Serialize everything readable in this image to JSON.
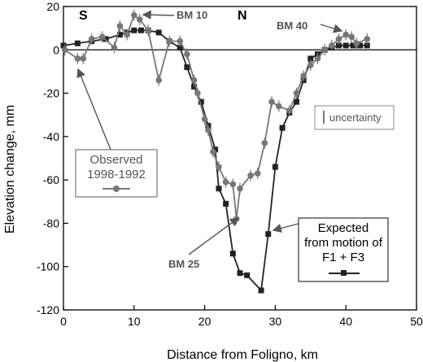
{
  "chart_data": {
    "type": "line",
    "xlabel": "Distance from Foligno, km",
    "ylabel": "Elevation change, mm",
    "xlim": [
      0,
      50
    ],
    "ylim": [
      -120,
      20
    ],
    "xticks": [
      0,
      10,
      20,
      30,
      40,
      50
    ],
    "yticks": [
      20,
      0,
      -20,
      -40,
      -60,
      -80,
      -100,
      -120
    ],
    "grid": false,
    "colors": {
      "observed": "#777777",
      "expected": "#222222",
      "axis": "#000000",
      "arrow": "#555555"
    },
    "series": [
      {
        "name": "Observed 1998-1992",
        "marker": "circle",
        "points": [
          [
            0.2,
            0
          ],
          [
            2,
            -4
          ],
          [
            2.8,
            -4
          ],
          [
            4,
            5
          ],
          [
            5.5,
            6
          ],
          [
            7.2,
            1
          ],
          [
            8,
            11
          ],
          [
            9,
            7
          ],
          [
            10,
            16
          ],
          [
            10.8,
            14
          ],
          [
            12,
            9
          ],
          [
            13.5,
            -14
          ],
          [
            15,
            4
          ],
          [
            16.5,
            4
          ],
          [
            17.5,
            -2
          ],
          [
            18.5,
            -14
          ],
          [
            19,
            -20
          ],
          [
            20,
            -32
          ],
          [
            20.5,
            -37
          ],
          [
            21.2,
            -47
          ],
          [
            22,
            -54
          ],
          [
            23,
            -61
          ],
          [
            24,
            -62
          ],
          [
            24.5,
            -78
          ],
          [
            25,
            -64
          ],
          [
            26.5,
            -58
          ],
          [
            27.5,
            -57
          ],
          [
            28.5,
            -43
          ],
          [
            29.5,
            -24
          ],
          [
            30.5,
            -26
          ],
          [
            32,
            -28
          ],
          [
            33,
            -20
          ],
          [
            34,
            -12
          ],
          [
            35,
            -7
          ],
          [
            36,
            -4
          ],
          [
            37,
            0
          ],
          [
            38,
            2
          ],
          [
            39,
            5
          ],
          [
            40,
            7
          ],
          [
            40.8,
            6
          ],
          [
            41.5,
            3
          ],
          [
            43,
            5
          ]
        ]
      },
      {
        "name": "Expected from motion of F1 + F3",
        "marker": "square",
        "points": [
          [
            0,
            2
          ],
          [
            2,
            3
          ],
          [
            4,
            4
          ],
          [
            6,
            5
          ],
          [
            8,
            7
          ],
          [
            9,
            8
          ],
          [
            10,
            9
          ],
          [
            11,
            9
          ],
          [
            12,
            9
          ],
          [
            13.5,
            8
          ],
          [
            15,
            4
          ],
          [
            16.5,
            1
          ],
          [
            17.5,
            -8
          ],
          [
            18.5,
            -17
          ],
          [
            19.5,
            -24
          ],
          [
            20.5,
            -35
          ],
          [
            21.5,
            -46
          ],
          [
            22,
            -64
          ],
          [
            23,
            -71
          ],
          [
            24,
            -94
          ],
          [
            25,
            -103
          ],
          [
            26,
            -104
          ],
          [
            28,
            -111
          ],
          [
            29,
            -85
          ],
          [
            30,
            -54
          ],
          [
            31,
            -36
          ],
          [
            32,
            -29
          ],
          [
            33,
            -24
          ],
          [
            34,
            -14
          ],
          [
            35,
            -4
          ],
          [
            36,
            -2
          ],
          [
            37,
            0
          ],
          [
            38,
            1
          ],
          [
            39,
            2
          ],
          [
            40,
            2
          ],
          [
            41,
            2
          ],
          [
            42,
            2
          ],
          [
            43,
            2
          ]
        ]
      }
    ],
    "annotations": {
      "south": "S",
      "north": "N",
      "bm10": "BM 10",
      "bm40": "BM 40",
      "bm25": "BM 25",
      "uncertainty": "uncertainty",
      "observed_line1": "Observed",
      "observed_line2": "1998-1992",
      "expected_line1": "Expected",
      "expected_line2": "from motion of",
      "expected_line3": "F1 + F3"
    }
  }
}
